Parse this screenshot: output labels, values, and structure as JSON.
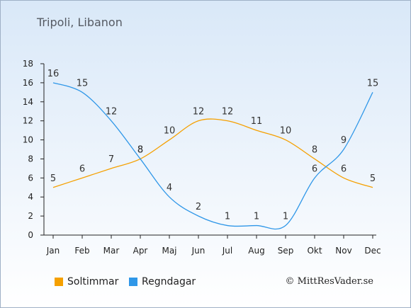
{
  "title": "Tripoli, Libanon",
  "copyright": "© MittResVader.se",
  "legend": [
    {
      "label": "Soltimmar",
      "color": "#f5a000"
    },
    {
      "label": "Regndagar",
      "color": "#2f97e8"
    }
  ],
  "chart_data": {
    "type": "line",
    "categories": [
      "Jan",
      "Feb",
      "Mar",
      "Apr",
      "Maj",
      "Jun",
      "Jul",
      "Aug",
      "Sep",
      "Okt",
      "Nov",
      "Dec"
    ],
    "ylim": [
      0,
      18
    ],
    "yticks": [
      0,
      2,
      4,
      6,
      8,
      10,
      12,
      14,
      16,
      18
    ],
    "grid": false,
    "legend_position": "bottom-left",
    "series": [
      {
        "name": "Soltimmar",
        "color": "#f5a000",
        "values": [
          5,
          6,
          7,
          8,
          10,
          12,
          12,
          11,
          10,
          8,
          6,
          5
        ]
      },
      {
        "name": "Regndagar",
        "color": "#2f97e8",
        "values": [
          16,
          15,
          12,
          8,
          4,
          2,
          1,
          1,
          1,
          6,
          9,
          15
        ]
      }
    ]
  }
}
